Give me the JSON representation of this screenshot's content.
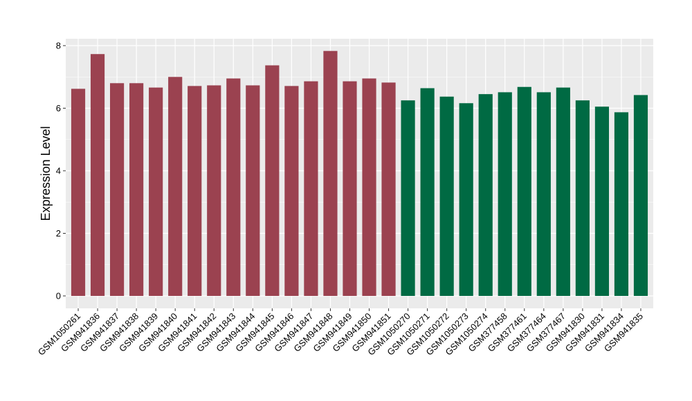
{
  "chart_data": {
    "type": "bar",
    "title": "",
    "xlabel": "",
    "ylabel": "Expression Level",
    "ylim": [
      0,
      8.2
    ],
    "yticks": [
      0,
      2,
      4,
      6,
      8
    ],
    "grid": true,
    "legend": "none",
    "colors": {
      "group_a": "#9b4250",
      "group_b": "#006a43",
      "panel_bg": "#ebebeb",
      "grid": "#ffffff"
    },
    "categories": [
      "GSM1050261",
      "GSM941836",
      "GSM941837",
      "GSM941838",
      "GSM941839",
      "GSM941840",
      "GSM941841",
      "GSM941842",
      "GSM941843",
      "GSM941844",
      "GSM941845",
      "GSM941846",
      "GSM941847",
      "GSM941848",
      "GSM941849",
      "GSM941850",
      "GSM941851",
      "GSM1050270",
      "GSM1050271",
      "GSM1050272",
      "GSM1050273",
      "GSM1050274",
      "GSM377458",
      "GSM377461",
      "GSM377464",
      "GSM377467",
      "GSM941830",
      "GSM941831",
      "GSM941834",
      "GSM941835"
    ],
    "values": [
      6.62,
      7.73,
      6.8,
      6.8,
      6.66,
      7.0,
      6.71,
      6.73,
      6.95,
      6.73,
      7.37,
      6.71,
      6.86,
      7.83,
      6.86,
      6.95,
      6.82,
      6.25,
      6.64,
      6.37,
      6.16,
      6.45,
      6.51,
      6.68,
      6.51,
      6.66,
      6.25,
      6.05,
      5.87,
      6.42
    ],
    "groups": [
      "a",
      "a",
      "a",
      "a",
      "a",
      "a",
      "a",
      "a",
      "a",
      "a",
      "a",
      "a",
      "a",
      "a",
      "a",
      "a",
      "a",
      "b",
      "b",
      "b",
      "b",
      "b",
      "b",
      "b",
      "b",
      "b",
      "b",
      "b",
      "b",
      "b"
    ]
  }
}
